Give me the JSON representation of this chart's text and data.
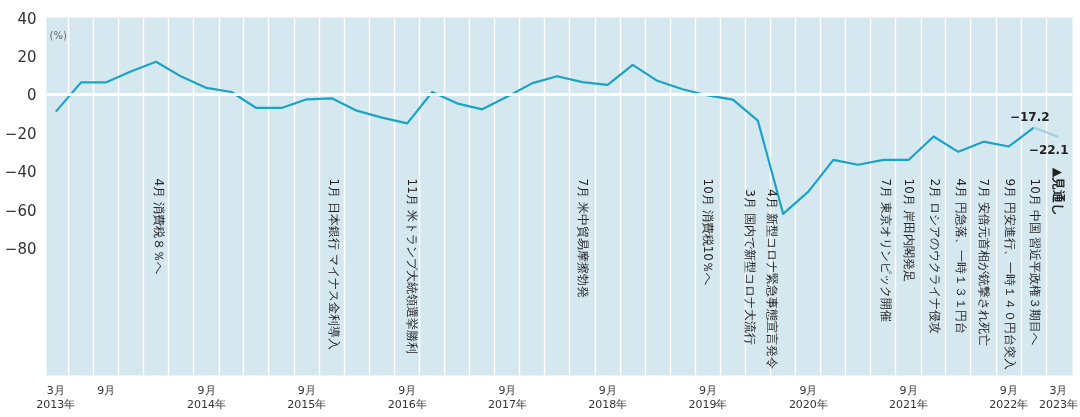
{
  "chart_data": {
    "type": "line",
    "ylabel": "(%)",
    "x": [
      "2013-03",
      "2013-06",
      "2013-09",
      "2013-12",
      "2014-03",
      "2014-06",
      "2014-09",
      "2014-12",
      "2015-03",
      "2015-06",
      "2015-09",
      "2015-12",
      "2016-03",
      "2016-06",
      "2016-09",
      "2016-12",
      "2017-03",
      "2017-06",
      "2017-09",
      "2017-12",
      "2018-03",
      "2018-06",
      "2018-09",
      "2018-12",
      "2019-03",
      "2019-06",
      "2019-09",
      "2019-12",
      "2020-03",
      "2020-06",
      "2020-09",
      "2020-12",
      "2021-03",
      "2021-06",
      "2021-09",
      "2021-12",
      "2022-03",
      "2022-06",
      "2022-09",
      "2022-12",
      "2023-03"
    ],
    "series": [
      {
        "color": "#1ba3c6",
        "values": [
          -8.9,
          6.3,
          6.3,
          12.1,
          17,
          9.3,
          3.4,
          1.3,
          -7,
          -7,
          -2.5,
          -2,
          -8.4,
          -12,
          -15,
          1.3,
          -4.6,
          -7.7,
          -1,
          5.9,
          9.5,
          6.4,
          5,
          15.4,
          7.1,
          2.7,
          -0.5,
          -2.7,
          -13.6,
          -62,
          -50.5,
          -34,
          -36.5,
          -34,
          -34,
          -21.8,
          -29.8,
          -24.5,
          -27,
          -17.2,
          null
        ],
        "value_labels": [
          null,
          null,
          null,
          null,
          null,
          null,
          null,
          null,
          null,
          null,
          null,
          null,
          null,
          null,
          null,
          null,
          null,
          null,
          null,
          null,
          null,
          null,
          null,
          null,
          null,
          null,
          null,
          null,
          null,
          null,
          null,
          null,
          null,
          null,
          null,
          null,
          null,
          null,
          null,
          "−17.2",
          null
        ]
      },
      {
        "color": "#9fd0e0",
        "values": [
          null,
          null,
          null,
          null,
          null,
          null,
          null,
          null,
          null,
          null,
          null,
          null,
          null,
          null,
          null,
          null,
          null,
          null,
          null,
          null,
          null,
          null,
          null,
          null,
          null,
          null,
          null,
          null,
          null,
          null,
          null,
          null,
          null,
          null,
          null,
          null,
          null,
          null,
          null,
          -17.2,
          -22.1
        ],
        "value_labels": [
          null,
          null,
          null,
          null,
          null,
          null,
          null,
          null,
          null,
          null,
          null,
          null,
          null,
          null,
          null,
          null,
          null,
          null,
          null,
          null,
          null,
          null,
          null,
          null,
          null,
          null,
          null,
          null,
          null,
          null,
          null,
          null,
          null,
          null,
          null,
          null,
          null,
          null,
          null,
          null,
          "−22.1"
        ]
      }
    ],
    "xlim": [
      "2013-01-26",
      "2023-04-21"
    ],
    "xticks": [
      {
        "value": "2013-03",
        "label": "3月\n2013年"
      },
      {
        "value": "2013-09",
        "label": "9月"
      },
      {
        "value": "2014-09",
        "label": "9月\n2014年"
      },
      {
        "value": "2015-09",
        "label": "9月\n2015年"
      },
      {
        "value": "2016-09",
        "label": "9月\n2016年"
      },
      {
        "value": "2017-09",
        "label": "9月\n2017年"
      },
      {
        "value": "2018-09",
        "label": "9月\n2018年"
      },
      {
        "value": "2019-09",
        "label": "9月\n2019年"
      },
      {
        "value": "2020-09",
        "label": "9月\n2020年"
      },
      {
        "value": "2021-09",
        "label": "9月\n2021年"
      },
      {
        "value": "2022-09",
        "label": "9月\n2022年"
      },
      {
        "value": "2023-03",
        "label": "3月\n2023年"
      }
    ],
    "ylim": [
      -146,
      40
    ],
    "yticks": [
      40,
      20,
      0,
      {
        "value": -20,
        "label": "−20"
      },
      {
        "value": -40,
        "label": "−40"
      },
      {
        "value": -60,
        "label": "−60"
      },
      {
        "value": -80,
        "label": "−80"
      }
    ],
    "grid": "x",
    "ref_lines": [
      {
        "axis": "y",
        "value": 0,
        "color": "#ffffff"
      }
    ],
    "annotations": [
      "4月 消費税８％へ",
      "1月 日本銀行 マイナス金利導入",
      "11月 米トランプ大統領選挙勝利",
      "7月 米中貿易摩擦勃発",
      "10月 消費税10％へ",
      "3月 国内で新型コロナ大流行",
      "4月 新型コロナ緊急事態宣言発令",
      "7月 東京オリンピック開催",
      "10月 岸田内閣発足",
      "2月 ロシアのウクライナ侵攻",
      "4月 円急落、一時１３１円台",
      "7月 安倍元首相が銃撃され死亡",
      "9月 円安進行、一時１４０円台突入",
      "10月 中国 習近平政権３期目へ",
      "▲見通し"
    ]
  }
}
